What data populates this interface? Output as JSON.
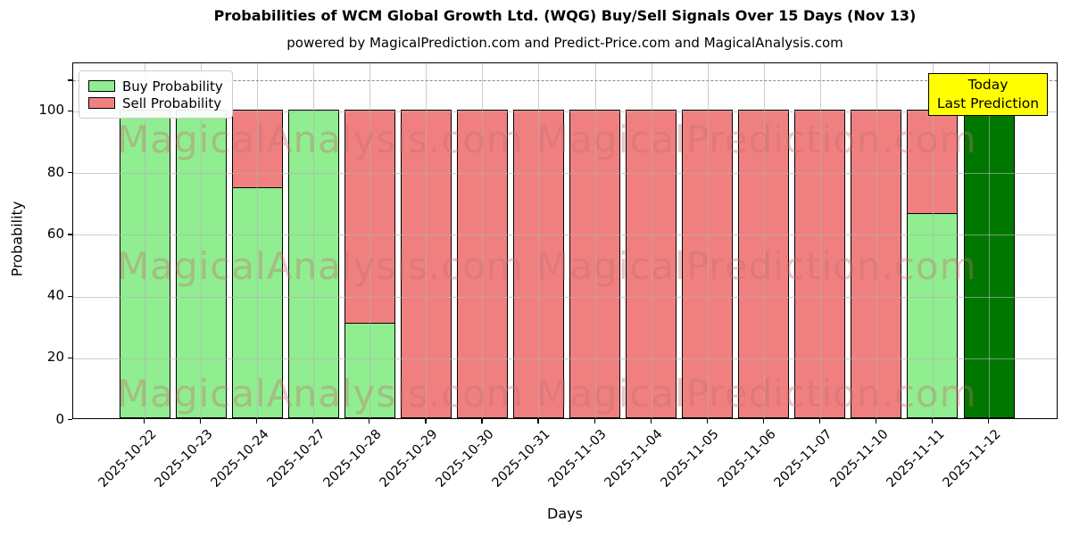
{
  "page": {
    "title": "Probabilities of WCM Global Growth Ltd. (WQG) Buy/Sell Signals Over 15 Days (Nov 13)",
    "subtitle": "powered by MagicalPrediction.com and Predict-Price.com and MagicalAnalysis.com"
  },
  "chart_data": {
    "type": "bar",
    "stacked": true,
    "title": "Probabilities of WCM Global Growth Ltd. (WQG) Buy/Sell Signals Over 15 Days (Nov 13)",
    "subtitle": "powered by MagicalPrediction.com and Predict-Price.com and MagicalAnalysis.com",
    "xlabel": "Days",
    "ylabel": "Probability",
    "ylim": [
      0,
      115.6
    ],
    "yticks": [
      0,
      20,
      40,
      60,
      80,
      100
    ],
    "grid": true,
    "dashed_line_y": 110,
    "legend_position": "upper-left",
    "categories": [
      "2025-10-22",
      "2025-10-23",
      "2025-10-24",
      "2025-10-27",
      "2025-10-28",
      "2025-10-29",
      "2025-10-30",
      "2025-10-31",
      "2025-11-03",
      "2025-11-04",
      "2025-11-05",
      "2025-11-06",
      "2025-11-07",
      "2025-11-10",
      "2025-11-11",
      "2025-11-12"
    ],
    "series": [
      {
        "name": "Buy Probability",
        "color": "#90ee90",
        "values": [
          100,
          100,
          75,
          100,
          31,
          0,
          0,
          0,
          0,
          0,
          0,
          0,
          0,
          0,
          66.7,
          0
        ]
      },
      {
        "name": "Sell Probability",
        "color": "#f08080",
        "values": [
          0,
          0,
          25,
          0,
          69,
          100,
          100,
          100,
          100,
          100,
          100,
          100,
          100,
          100,
          33.3,
          0
        ]
      },
      {
        "name": "Today Last Prediction",
        "color": "#007800",
        "values": [
          0,
          0,
          0,
          0,
          0,
          0,
          0,
          0,
          0,
          0,
          0,
          0,
          0,
          0,
          0,
          100
        ]
      }
    ],
    "legend": {
      "entries": [
        {
          "label": "Buy Probability",
          "color": "#90ee90"
        },
        {
          "label": "Sell Probability",
          "color": "#f08080"
        }
      ]
    },
    "annotation": {
      "line1": "Today",
      "line2": "Last Prediction",
      "bg": "#ffff00",
      "border": "#000000"
    },
    "watermarks": {
      "left_text": "MagicalAnalysis.com",
      "right_text": "MagicalPrediction.com",
      "color": "rgba(196,110,110,0.38)"
    }
  },
  "colors": {
    "buy": "#90ee90",
    "sell": "#f08080",
    "today": "#007800",
    "bar_edge": "#000000",
    "annotation_bg": "#ffff00",
    "grid": "#b0b0b0",
    "dashed_line": "#8a8a8a"
  }
}
